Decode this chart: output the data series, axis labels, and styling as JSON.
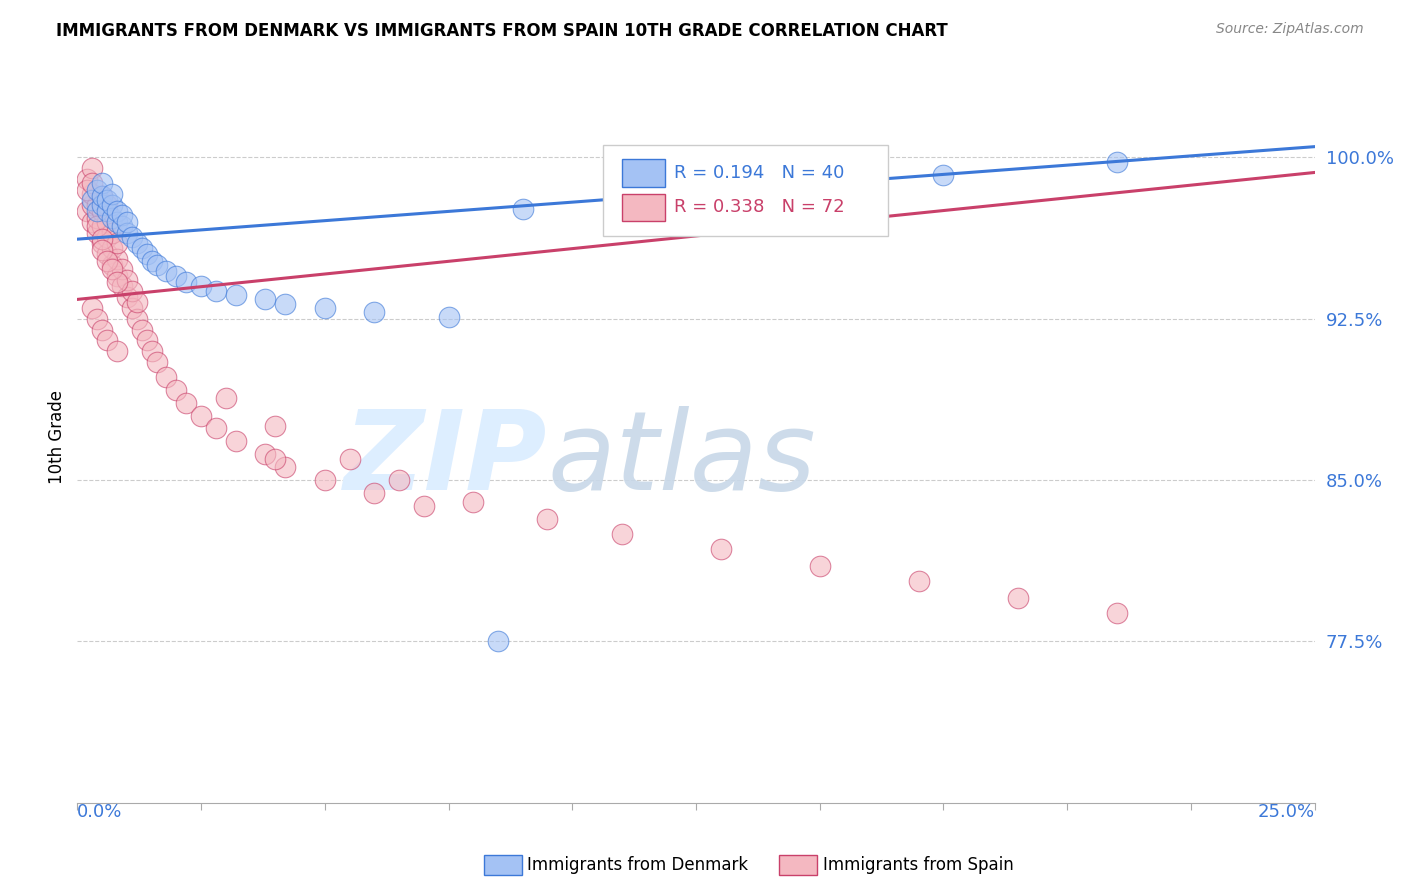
{
  "title": "IMMIGRANTS FROM DENMARK VS IMMIGRANTS FROM SPAIN 10TH GRADE CORRELATION CHART",
  "source": "Source: ZipAtlas.com",
  "ylabel": "10th Grade",
  "ytick_labels": [
    "100.0%",
    "92.5%",
    "85.0%",
    "77.5%"
  ],
  "ytick_values": [
    1.0,
    0.925,
    0.85,
    0.775
  ],
  "xlim": [
    0.0,
    0.25
  ],
  "ylim": [
    0.7,
    1.04
  ],
  "denmark_color": "#a4c2f4",
  "spain_color": "#f4b8c1",
  "denmark_edge_color": "#3c78d8",
  "spain_edge_color": "#c9406a",
  "denmark_line_color": "#3c78d8",
  "spain_line_color": "#c9406a",
  "legend_denmark_R": "0.194",
  "legend_denmark_N": "40",
  "legend_spain_R": "0.338",
  "legend_spain_N": "72",
  "dk_trend_x": [
    0.0,
    0.25
  ],
  "dk_trend_y": [
    0.962,
    1.005
  ],
  "sp_trend_x": [
    0.0,
    0.25
  ],
  "sp_trend_y": [
    0.934,
    0.993
  ],
  "denmark_x": [
    0.003,
    0.004,
    0.004,
    0.005,
    0.005,
    0.005,
    0.006,
    0.006,
    0.007,
    0.007,
    0.007,
    0.008,
    0.008,
    0.009,
    0.009,
    0.01,
    0.01,
    0.011,
    0.012,
    0.013,
    0.014,
    0.015,
    0.016,
    0.018,
    0.02,
    0.022,
    0.025,
    0.028,
    0.032,
    0.038,
    0.042,
    0.05,
    0.06,
    0.075,
    0.09,
    0.11,
    0.14,
    0.175,
    0.21,
    0.085
  ],
  "denmark_y": [
    0.98,
    0.985,
    0.975,
    0.978,
    0.982,
    0.988,
    0.975,
    0.98,
    0.972,
    0.978,
    0.983,
    0.97,
    0.975,
    0.968,
    0.973,
    0.965,
    0.97,
    0.963,
    0.96,
    0.958,
    0.955,
    0.952,
    0.95,
    0.947,
    0.945,
    0.942,
    0.94,
    0.938,
    0.936,
    0.934,
    0.932,
    0.93,
    0.928,
    0.926,
    0.976,
    0.98,
    0.985,
    0.992,
    0.998,
    0.775
  ],
  "spain_x": [
    0.002,
    0.003,
    0.003,
    0.003,
    0.004,
    0.004,
    0.004,
    0.005,
    0.005,
    0.005,
    0.005,
    0.006,
    0.006,
    0.006,
    0.006,
    0.007,
    0.007,
    0.007,
    0.008,
    0.008,
    0.008,
    0.009,
    0.009,
    0.01,
    0.01,
    0.011,
    0.011,
    0.012,
    0.012,
    0.013,
    0.014,
    0.015,
    0.016,
    0.018,
    0.02,
    0.022,
    0.025,
    0.028,
    0.032,
    0.038,
    0.042,
    0.05,
    0.06,
    0.07,
    0.03,
    0.04,
    0.055,
    0.065,
    0.08,
    0.095,
    0.11,
    0.13,
    0.15,
    0.17,
    0.19,
    0.21,
    0.002,
    0.002,
    0.003,
    0.003,
    0.004,
    0.005,
    0.005,
    0.006,
    0.007,
    0.008,
    0.003,
    0.004,
    0.005,
    0.006,
    0.008,
    0.04
  ],
  "spain_y": [
    0.975,
    0.97,
    0.978,
    0.983,
    0.965,
    0.972,
    0.978,
    0.96,
    0.968,
    0.975,
    0.982,
    0.955,
    0.963,
    0.97,
    0.978,
    0.95,
    0.958,
    0.965,
    0.945,
    0.953,
    0.96,
    0.94,
    0.948,
    0.935,
    0.943,
    0.93,
    0.938,
    0.925,
    0.933,
    0.92,
    0.915,
    0.91,
    0.905,
    0.898,
    0.892,
    0.886,
    0.88,
    0.874,
    0.868,
    0.862,
    0.856,
    0.85,
    0.844,
    0.838,
    0.888,
    0.875,
    0.86,
    0.85,
    0.84,
    0.832,
    0.825,
    0.818,
    0.81,
    0.803,
    0.795,
    0.788,
    0.99,
    0.985,
    0.995,
    0.988,
    0.968,
    0.962,
    0.957,
    0.952,
    0.948,
    0.942,
    0.93,
    0.925,
    0.92,
    0.915,
    0.91,
    0.86
  ]
}
